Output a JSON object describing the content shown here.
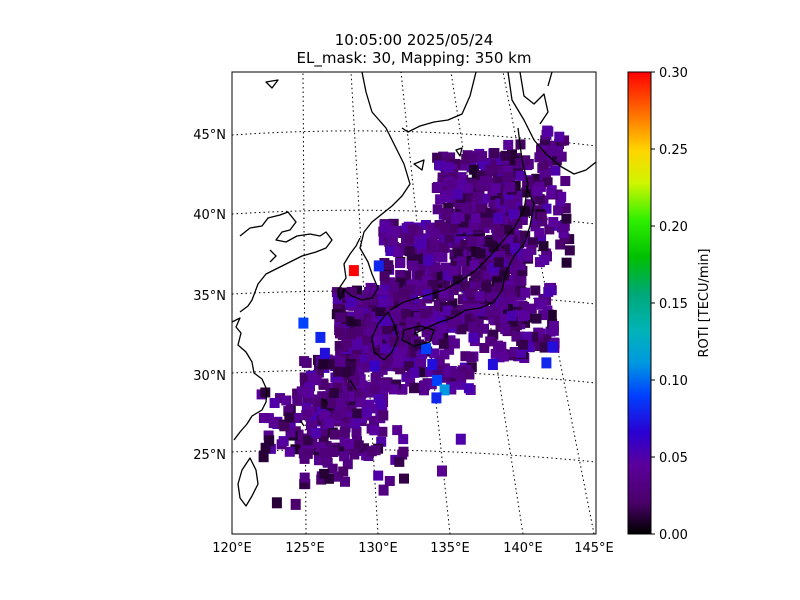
{
  "title": {
    "line1": "10:05:00 2025/05/24",
    "line2": "EL_mask: 30, Mapping: 350 km"
  },
  "map": {
    "lon_range": [
      120,
      145
    ],
    "lat_range": [
      20,
      49
    ],
    "lon_ticks": [
      "120°E",
      "125°E",
      "130°E",
      "135°E",
      "140°E",
      "145°E"
    ],
    "lat_ticks": [
      "25°N",
      "30°N",
      "35°N",
      "40°N",
      "45°N"
    ],
    "graticule": "dotted",
    "coastline_color": "#000000"
  },
  "colorbar": {
    "label": "ROTI [TECU/min]",
    "range": [
      0.0,
      0.3
    ],
    "ticks": [
      "0.00",
      "0.05",
      "0.10",
      "0.15",
      "0.20",
      "0.25",
      "0.30"
    ],
    "colormap": "nipy_spectral-like (black-purple-blue-cyan-green-yellow-red)"
  },
  "roti_cells": [
    {
      "lon": 128.8,
      "lat": 36.5,
      "roti": 0.3
    },
    {
      "lon": 130.6,
      "lat": 36.8,
      "roti": 0.08
    },
    {
      "lon": 125.1,
      "lat": 33.2,
      "roti": 0.09
    },
    {
      "lon": 126.3,
      "lat": 32.3,
      "roti": 0.08
    },
    {
      "lon": 126.6,
      "lat": 31.3,
      "roti": 0.07
    },
    {
      "lon": 133.8,
      "lat": 31.6,
      "roti": 0.09
    },
    {
      "lon": 134.2,
      "lat": 30.6,
      "roti": 0.07
    },
    {
      "lon": 134.5,
      "lat": 29.6,
      "roti": 0.09
    },
    {
      "lon": 135.0,
      "lat": 29.0,
      "roti": 0.11
    },
    {
      "lon": 134.4,
      "lat": 28.5,
      "roti": 0.08
    },
    {
      "lon": 138.5,
      "lat": 30.6,
      "roti": 0.07
    },
    {
      "lon": 142.3,
      "lat": 30.7,
      "roti": 0.08
    },
    {
      "lon": 142.8,
      "lat": 31.7,
      "roti": 0.07
    },
    {
      "lon": 130.1,
      "lat": 30.5,
      "roti": 0.06
    },
    {
      "lon": 122.6,
      "lat": 25.8,
      "roti": 0.01
    },
    {
      "lon": 122.2,
      "lat": 24.8,
      "roti": 0.01
    },
    {
      "lon": 123.1,
      "lat": 21.9,
      "roti": 0.01
    },
    {
      "lon": 124.4,
      "lat": 21.8,
      "roti": 0.02
    },
    {
      "lon": 130.5,
      "lat": 22.7,
      "roti": 0.03
    },
    {
      "lon": 134.6,
      "lat": 23.9,
      "roti": 0.04
    },
    {
      "lon": 136.0,
      "lat": 25.9,
      "roti": 0.05
    }
  ]
}
